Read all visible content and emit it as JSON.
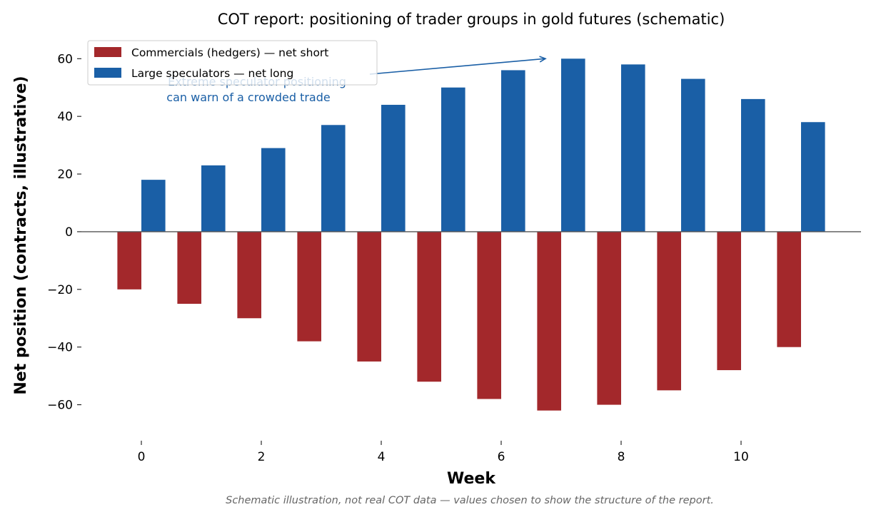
{
  "chart_data": {
    "type": "bar",
    "title": "COT report: positioning of trader groups in gold futures (schematic)",
    "xlabel": "Week",
    "ylabel": "Net position (contracts, illustrative)",
    "x": [
      0,
      1,
      2,
      3,
      4,
      5,
      6,
      7,
      8,
      9,
      10,
      11
    ],
    "xticks": [
      0,
      2,
      4,
      6,
      8,
      10
    ],
    "yticks": [
      -60,
      -40,
      -20,
      0,
      20,
      40,
      60
    ],
    "xlim": [
      -1,
      12
    ],
    "ylim": [
      -69,
      66
    ],
    "grid": false,
    "legend_position": "upper-left",
    "series": [
      {
        "name": "Commercials (hedgers) — net short",
        "color": "#a3282b",
        "values": [
          -20,
          -25,
          -30,
          -38,
          -45,
          -52,
          -58,
          -62,
          -60,
          -55,
          -48,
          -40
        ]
      },
      {
        "name": "Large speculators — net long",
        "color": "#1a5fa6",
        "values": [
          18,
          23,
          29,
          37,
          44,
          50,
          56,
          60,
          58,
          53,
          46,
          38
        ]
      }
    ],
    "annotation": {
      "lines": [
        "Extreme speculator positioning",
        "can warn of a crowded trade"
      ],
      "target_x": 7,
      "target_y": 60
    },
    "footnote": "Schematic illustration, not real COT data — values chosen to show the structure of the report."
  }
}
